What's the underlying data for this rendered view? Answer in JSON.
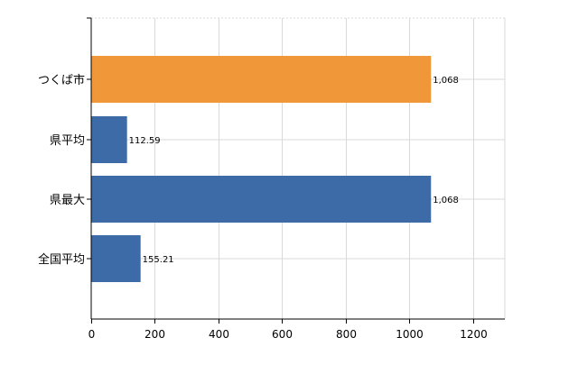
{
  "chart_data": {
    "type": "bar",
    "orientation": "horizontal",
    "categories": [
      "つくば市",
      "県平均",
      "県最大",
      "全国平均"
    ],
    "values": [
      1068,
      112.59,
      1068,
      155.21
    ],
    "data_labels": [
      "1,068",
      "112.59",
      "1,068",
      "155.21"
    ],
    "bar_colors": [
      "#F0973A",
      "#3C6BA8",
      "#3C6BA8",
      "#3C6BA8"
    ],
    "title": "",
    "xlabel": "",
    "ylabel": "",
    "xlim": [
      0,
      1300
    ],
    "x_ticks": [
      0,
      200,
      400,
      600,
      800,
      1000,
      1200
    ],
    "x_tick_labels": [
      "0",
      "200",
      "400",
      "600",
      "800",
      "1000",
      "1200"
    ],
    "grid": true,
    "legend": "none"
  }
}
